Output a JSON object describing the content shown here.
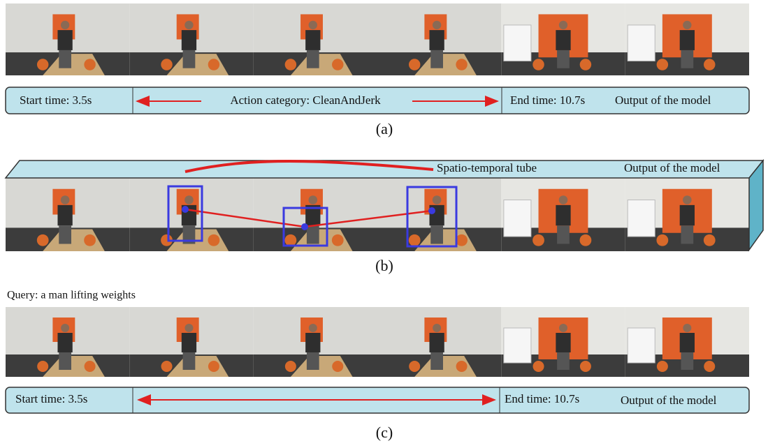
{
  "panel_a": {
    "start_time": "Start time: 3.5s",
    "action_category": "Action category: CleanAndJerk",
    "end_time": "End time: 10.7s",
    "output": "Output of the model",
    "caption": "(a)"
  },
  "panel_b": {
    "tube_label": "Spatio-temporal tube",
    "output": "Output of the model",
    "caption": "(b)"
  },
  "panel_c": {
    "query": "Query: a man lifting weights",
    "start_time": "Start time: 3.5s",
    "end_time": "End time: 10.7s",
    "output": "Output of the model",
    "caption": "(c)"
  }
}
